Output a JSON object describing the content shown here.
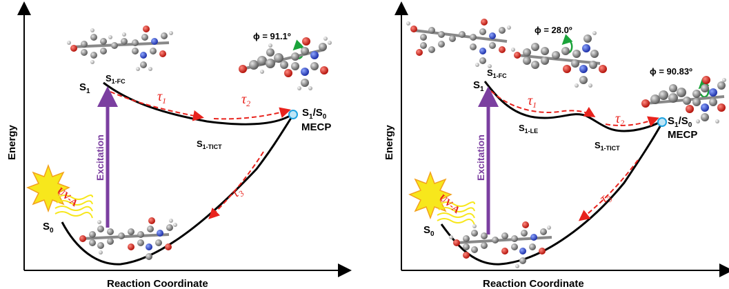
{
  "left_panel": {
    "y_axis_label": "Energy",
    "x_axis_label": "Reaction Coordinate",
    "s1": "S",
    "s1_sub": "1",
    "s1fc": "S",
    "s1fc_sub": "1-FC",
    "tau1": "τ",
    "tau1_sub": "1",
    "tau2": "τ",
    "tau2_sub": "2",
    "tau3": "τ",
    "tau3_sub": "3",
    "mecp_top": "S",
    "mecp_top_sub1": "1",
    "mecp_top_mid": "/S",
    "mecp_top_sub2": "0",
    "mecp": "MECP",
    "s1ticT": "S",
    "s1ticT_sub": "1-TICT",
    "s0": "S",
    "s0_sub": "0",
    "excitation": "Excitation",
    "uva": "UV-A",
    "phi": "ϕ = 91.1º"
  },
  "right_panel": {
    "y_axis_label": "Energy",
    "x_axis_label": "Reaction Coordinate",
    "s1": "S",
    "s1_sub": "1",
    "s1fc": "S",
    "s1fc_sub": "1-FC",
    "s1le": "S",
    "s1le_sub": "1-LE",
    "tau1": "τ",
    "tau1_sub": "1",
    "tau2": "τ",
    "tau2_sub": "2",
    "tau3": "τ",
    "tau3_sub": "3",
    "mecp_top": "S",
    "mecp_top_sub1": "1",
    "mecp_top_mid": "/S",
    "mecp_top_sub2": "0",
    "mecp": "MECP",
    "s1ticT": "S",
    "s1ticT_sub": "1-TICT",
    "s0": "S",
    "s0_sub": "0",
    "excitation": "Excitation",
    "uva": "UV-A",
    "phi1": "ϕ = 28.0º",
    "phi2": "ϕ = 90.83º"
  },
  "colors": {
    "curve": "#000000",
    "arrow_red": "#e8231d",
    "excitation": "#7b3fa0",
    "mecp_circle": "#1fa3e0",
    "sun": "#f7e71c",
    "twist_arrow": "#1aa33a"
  }
}
